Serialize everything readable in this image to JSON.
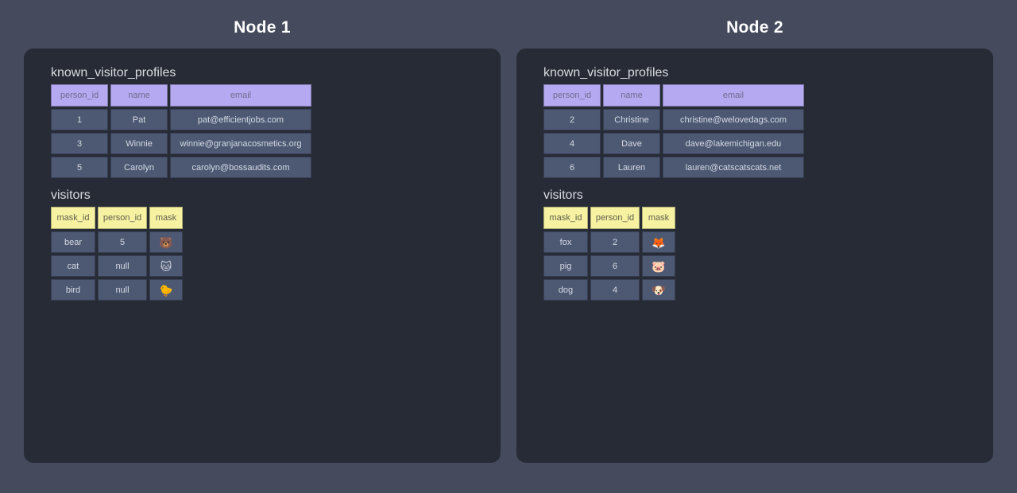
{
  "colors": {
    "page_bg": "#454a5c",
    "panel_bg": "#272b36",
    "cell_bg": "#4d5873",
    "cell_text": "#d6dae3",
    "table_title": "#d9dbe0",
    "node_title": "#ffffff"
  },
  "nodes": [
    {
      "title": "Node 1",
      "tables": [
        {
          "name": "known_visitor_profiles",
          "header_bg": "#b5aaf2",
          "header_text": "#6f6c8c",
          "columns": [
            "person_id",
            "name",
            "email"
          ],
          "rows": [
            [
              "1",
              "Pat",
              "pat@efficientjobs.com"
            ],
            [
              "3",
              "Winnie",
              "winnie@granjanacosmetics.org"
            ],
            [
              "5",
              "Carolyn",
              "carolyn@bossaudits.com"
            ]
          ]
        },
        {
          "name": "visitors",
          "header_bg": "#f6f2a1",
          "header_text": "#5e5f4e",
          "columns": [
            "mask_id",
            "person_id",
            "mask"
          ],
          "rows": [
            [
              "bear",
              "5",
              "🐻"
            ],
            [
              "cat",
              "null",
              "🐱"
            ],
            [
              "bird",
              "null",
              "🐤"
            ]
          ]
        }
      ]
    },
    {
      "title": "Node 2",
      "tables": [
        {
          "name": "known_visitor_profiles",
          "header_bg": "#b5aaf2",
          "header_text": "#6f6c8c",
          "columns": [
            "person_id",
            "name",
            "email"
          ],
          "rows": [
            [
              "2",
              "Christine",
              "christine@welovedags.com"
            ],
            [
              "4",
              "Dave",
              "dave@lakemichigan.edu"
            ],
            [
              "6",
              "Lauren",
              "lauren@catscatscats.net"
            ]
          ]
        },
        {
          "name": "visitors",
          "header_bg": "#f6f2a1",
          "header_text": "#5e5f4e",
          "columns": [
            "mask_id",
            "person_id",
            "mask"
          ],
          "rows": [
            [
              "fox",
              "2",
              "🦊"
            ],
            [
              "pig",
              "6",
              "🐷"
            ],
            [
              "dog",
              "4",
              "🐶"
            ]
          ]
        }
      ]
    }
  ]
}
